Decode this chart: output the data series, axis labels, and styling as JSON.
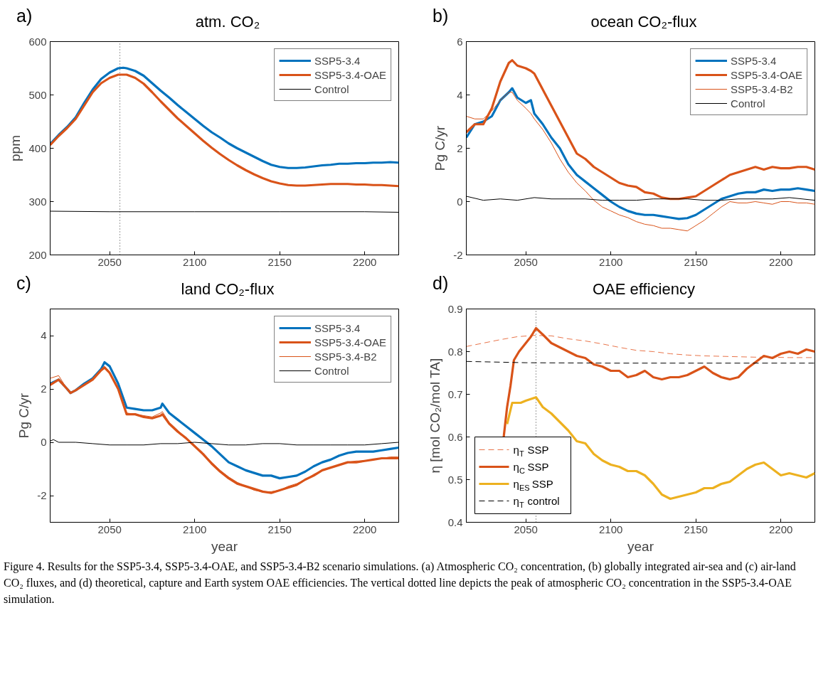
{
  "chart_data": [
    {
      "type": "line",
      "title": "atm. CO₂",
      "ylabel": "ppm",
      "annotations": [
        "a)"
      ],
      "xlim": [
        2015,
        2220
      ],
      "xticks": [
        2050,
        2100,
        2150,
        2200
      ],
      "ylim": [
        200,
        600
      ],
      "yticks": [
        200,
        300,
        400,
        500,
        600
      ],
      "legend": "top right",
      "grid": false,
      "ref_lines": [
        {
          "axis": "x",
          "value": 2056,
          "color": "#555555",
          "line_style": "dotted"
        }
      ],
      "x": [
        2015,
        2020,
        2025,
        2030,
        2035,
        2040,
        2045,
        2050,
        2055,
        2058,
        2060,
        2065,
        2070,
        2075,
        2080,
        2085,
        2090,
        2095,
        2100,
        2105,
        2110,
        2115,
        2120,
        2125,
        2130,
        2135,
        2140,
        2145,
        2150,
        2155,
        2160,
        2165,
        2170,
        2175,
        2180,
        2185,
        2190,
        2195,
        2200,
        2205,
        2210,
        2215,
        2220
      ],
      "series": [
        {
          "name": "SSP5-3.4",
          "color": "#0072bd",
          "values": [
            408,
            425,
            440,
            458,
            485,
            510,
            530,
            542,
            550,
            551,
            550,
            545,
            536,
            522,
            508,
            495,
            481,
            468,
            455,
            442,
            430,
            420,
            409,
            400,
            392,
            384,
            376,
            369,
            365,
            363,
            363,
            364,
            366,
            368,
            369,
            371,
            371,
            372,
            372,
            373,
            373,
            374,
            373
          ]
        },
        {
          "name": "SSP5-3.4-OAE",
          "color": "#d95319",
          "values": [
            406,
            423,
            438,
            455,
            480,
            505,
            522,
            532,
            538,
            538,
            538,
            532,
            521,
            505,
            488,
            472,
            456,
            442,
            428,
            414,
            401,
            389,
            378,
            368,
            359,
            351,
            344,
            338,
            334,
            331,
            330,
            330,
            331,
            332,
            333,
            333,
            333,
            332,
            332,
            331,
            331,
            330,
            329
          ]
        },
        {
          "name": "Control",
          "color": "#000000",
          "x": [
            2015,
            2050,
            2100,
            2150,
            2200,
            2220
          ],
          "values": [
            282,
            281,
            281,
            281,
            281,
            280
          ]
        }
      ]
    },
    {
      "type": "line",
      "title": "ocean CO₂-flux",
      "ylabel": "Pg C/yr",
      "annotations": [
        "b)"
      ],
      "xlim": [
        2015,
        2220
      ],
      "xticks": [
        2050,
        2100,
        2150,
        2200
      ],
      "ylim": [
        -2,
        6
      ],
      "yticks": [
        -2,
        0,
        2,
        4,
        6
      ],
      "legend": "top right",
      "grid": false,
      "x": [
        2015,
        2020,
        2025,
        2030,
        2035,
        2040,
        2042,
        2045,
        2050,
        2053,
        2055,
        2060,
        2065,
        2070,
        2075,
        2080,
        2085,
        2090,
        2095,
        2100,
        2105,
        2110,
        2115,
        2120,
        2125,
        2130,
        2135,
        2140,
        2145,
        2150,
        2155,
        2160,
        2165,
        2170,
        2175,
        2180,
        2185,
        2190,
        2195,
        2200,
        2205,
        2210,
        2215,
        2220
      ],
      "series": [
        {
          "name": "SSP5-3.4",
          "color": "#0072bd",
          "values": [
            2.4,
            2.9,
            3.0,
            3.2,
            3.8,
            4.1,
            4.25,
            3.9,
            3.7,
            3.8,
            3.3,
            2.9,
            2.4,
            2.0,
            1.4,
            1.0,
            0.75,
            0.5,
            0.25,
            0.0,
            -0.2,
            -0.35,
            -0.45,
            -0.5,
            -0.5,
            -0.55,
            -0.6,
            -0.65,
            -0.62,
            -0.5,
            -0.3,
            -0.1,
            0.1,
            0.2,
            0.3,
            0.35,
            0.35,
            0.45,
            0.4,
            0.45,
            0.45,
            0.5,
            0.45,
            0.4
          ]
        },
        {
          "name": "SSP5-3.4-OAE",
          "color": "#d95319",
          "values": [
            2.6,
            2.9,
            2.9,
            3.5,
            4.5,
            5.2,
            5.3,
            5.1,
            5.0,
            4.9,
            4.8,
            4.2,
            3.6,
            3.0,
            2.4,
            1.8,
            1.6,
            1.3,
            1.1,
            0.9,
            0.7,
            0.6,
            0.55,
            0.35,
            0.3,
            0.15,
            0.1,
            0.1,
            0.15,
            0.2,
            0.4,
            0.6,
            0.8,
            1.0,
            1.1,
            1.2,
            1.3,
            1.2,
            1.3,
            1.25,
            1.25,
            1.3,
            1.3,
            1.2
          ]
        },
        {
          "name": "SSP5-3.4-B2",
          "color": "#d95319",
          "values": [
            3.2,
            3.1,
            3.1,
            3.4,
            3.8,
            4.1,
            4.1,
            3.8,
            3.5,
            3.3,
            3.1,
            2.7,
            2.2,
            1.6,
            1.1,
            0.7,
            0.4,
            0.05,
            -0.2,
            -0.35,
            -0.5,
            -0.6,
            -0.75,
            -0.85,
            -0.9,
            -1.0,
            -1.0,
            -1.05,
            -1.1,
            -0.9,
            -0.7,
            -0.45,
            -0.2,
            0.0,
            -0.05,
            -0.05,
            0.0,
            -0.05,
            -0.1,
            0.0,
            0.0,
            -0.05,
            -0.05,
            -0.1
          ]
        },
        {
          "name": "Control",
          "color": "#000000",
          "x": [
            2015,
            2025,
            2035,
            2045,
            2055,
            2065,
            2075,
            2085,
            2095,
            2105,
            2115,
            2125,
            2135,
            2145,
            2155,
            2165,
            2175,
            2185,
            2195,
            2205,
            2220
          ],
          "values": [
            0.2,
            0.05,
            0.1,
            0.05,
            0.15,
            0.1,
            0.1,
            0.1,
            0.05,
            0.05,
            0.05,
            0.1,
            0.1,
            0.1,
            0.05,
            0.05,
            0.1,
            0.1,
            0.1,
            0.15,
            0.05
          ]
        }
      ]
    },
    {
      "type": "line",
      "title": "land CO₂-flux",
      "xlabel": "year",
      "ylabel": "Pg C/yr",
      "annotations": [
        "c)"
      ],
      "xlim": [
        2015,
        2220
      ],
      "xticks": [
        2050,
        2100,
        2150,
        2200
      ],
      "ylim": [
        -3,
        5
      ],
      "yticks": [
        -2,
        0,
        2,
        4
      ],
      "legend": "top right",
      "grid": false,
      "x": [
        2015,
        2020,
        2025,
        2027,
        2030,
        2035,
        2040,
        2045,
        2047,
        2050,
        2055,
        2060,
        2065,
        2070,
        2075,
        2080,
        2081,
        2085,
        2090,
        2095,
        2100,
        2105,
        2110,
        2115,
        2120,
        2125,
        2130,
        2135,
        2140,
        2145,
        2150,
        2155,
        2160,
        2165,
        2170,
        2175,
        2180,
        2185,
        2190,
        2195,
        2200,
        2205,
        2210,
        2215,
        2220
      ],
      "series": [
        {
          "name": "SSP5-3.4",
          "color": "#0072bd",
          "values": [
            2.2,
            2.35,
            2.0,
            1.85,
            1.95,
            2.2,
            2.4,
            2.75,
            3.0,
            2.85,
            2.2,
            1.3,
            1.25,
            1.2,
            1.2,
            1.3,
            1.45,
            1.1,
            0.85,
            0.6,
            0.35,
            0.1,
            -0.15,
            -0.45,
            -0.75,
            -0.9,
            -1.05,
            -1.15,
            -1.25,
            -1.25,
            -1.35,
            -1.3,
            -1.25,
            -1.1,
            -0.9,
            -0.75,
            -0.65,
            -0.5,
            -0.4,
            -0.35,
            -0.35,
            -0.35,
            -0.3,
            -0.25,
            -0.2
          ]
        },
        {
          "name": "SSP5-3.4-OAE",
          "color": "#d95319",
          "values": [
            2.15,
            2.35,
            2.0,
            1.85,
            1.95,
            2.15,
            2.35,
            2.7,
            2.8,
            2.6,
            2.0,
            1.05,
            1.05,
            0.95,
            0.9,
            1.0,
            1.05,
            0.7,
            0.4,
            0.15,
            -0.15,
            -0.45,
            -0.8,
            -1.1,
            -1.35,
            -1.55,
            -1.65,
            -1.75,
            -1.85,
            -1.9,
            -1.8,
            -1.7,
            -1.6,
            -1.4,
            -1.25,
            -1.05,
            -0.95,
            -0.85,
            -0.75,
            -0.75,
            -0.7,
            -0.65,
            -0.6,
            -0.6,
            -0.6
          ]
        },
        {
          "name": "SSP5-3.4-B2",
          "color": "#d95319",
          "values": [
            2.4,
            2.5,
            2.0,
            1.85,
            1.95,
            2.15,
            2.4,
            2.75,
            2.85,
            2.65,
            2.05,
            1.1,
            1.05,
            1.0,
            0.95,
            1.1,
            1.15,
            0.75,
            0.45,
            0.15,
            -0.1,
            -0.4,
            -0.75,
            -1.05,
            -1.3,
            -1.5,
            -1.65,
            -1.8,
            -1.85,
            -1.85,
            -1.8,
            -1.65,
            -1.55,
            -1.4,
            -1.2,
            -1.05,
            -0.95,
            -0.85,
            -0.75,
            -0.7,
            -0.7,
            -0.65,
            -0.6,
            -0.55,
            -0.55
          ]
        },
        {
          "name": "Control",
          "color": "#000000",
          "x": [
            2015,
            2017,
            2020,
            2030,
            2040,
            2050,
            2060,
            2070,
            2080,
            2090,
            2100,
            2110,
            2120,
            2130,
            2140,
            2150,
            2160,
            2170,
            2180,
            2190,
            2200,
            2210,
            2220
          ],
          "values": [
            0.05,
            0.1,
            0.0,
            0.0,
            -0.05,
            -0.1,
            -0.1,
            -0.1,
            -0.05,
            -0.05,
            0.0,
            -0.05,
            -0.1,
            -0.1,
            -0.05,
            -0.05,
            -0.1,
            -0.1,
            -0.1,
            -0.1,
            -0.1,
            -0.05,
            0.0
          ]
        }
      ]
    },
    {
      "type": "line",
      "title": "OAE efficiency",
      "xlabel": "year",
      "ylabel": "η [mol CO₂/mol TA]",
      "annotations": [
        "d)",
        "Figure 4. Results for the SSP5-3.4, SSP5-3.4-OAE, and SSP5-3.4-B2 scenario simulations. (a) Atmospheric CO₂ concentration, (b) globally integrated air-sea and (c) air-land CO₂ fluxes, and (d) theoretical, capture and Earth system OAE efficiencies. The vertical dotted line depicts the peak of atmospheric CO₂ concentration in the SSP5-3.4-OAE simulation."
      ],
      "xlim": [
        2015,
        2220
      ],
      "xticks": [
        2050,
        2100,
        2150,
        2200
      ],
      "ylim": [
        0.4,
        0.9
      ],
      "yticks": [
        0.4,
        0.5,
        0.6,
        0.7,
        0.8,
        0.9
      ],
      "legend": "bottom left",
      "grid": false,
      "ref_lines": [
        {
          "axis": "x",
          "value": 2056,
          "color": "#555555",
          "line_style": "dotted"
        }
      ],
      "series": [
        {
          "name": "η$_{T}$ SSP",
          "color": "#e8744a",
          "line_style": "dashed",
          "x": [
            2015,
            2025,
            2035,
            2045,
            2055,
            2065,
            2075,
            2085,
            2095,
            2105,
            2115,
            2125,
            2135,
            2145,
            2155,
            2165,
            2175,
            2185,
            2195,
            2205,
            2220
          ],
          "values": [
            0.812,
            0.82,
            0.828,
            0.835,
            0.838,
            0.837,
            0.83,
            0.825,
            0.818,
            0.81,
            0.803,
            0.8,
            0.795,
            0.792,
            0.79,
            0.789,
            0.788,
            0.787,
            0.787,
            0.786,
            0.786
          ]
        },
        {
          "name": "η$_{C}$ SSP",
          "color": "#d95319",
          "x": [
            2037,
            2039,
            2041,
            2043,
            2046,
            2050,
            2053,
            2056,
            2060,
            2065,
            2070,
            2075,
            2080,
            2085,
            2090,
            2095,
            2100,
            2105,
            2110,
            2115,
            2120,
            2125,
            2130,
            2135,
            2140,
            2145,
            2150,
            2155,
            2160,
            2165,
            2170,
            2175,
            2180,
            2185,
            2190,
            2195,
            2200,
            2205,
            2210,
            2215,
            2220
          ],
          "values": [
            0.6,
            0.67,
            0.72,
            0.78,
            0.8,
            0.82,
            0.835,
            0.855,
            0.84,
            0.82,
            0.81,
            0.8,
            0.79,
            0.785,
            0.77,
            0.765,
            0.755,
            0.755,
            0.74,
            0.745,
            0.755,
            0.74,
            0.735,
            0.74,
            0.74,
            0.745,
            0.755,
            0.765,
            0.75,
            0.74,
            0.735,
            0.74,
            0.76,
            0.775,
            0.79,
            0.785,
            0.795,
            0.8,
            0.795,
            0.805,
            0.8
          ]
        },
        {
          "name": "η$_{ES}$ SSP",
          "color": "#edb120",
          "x": [
            2039,
            2042,
            2047,
            2050,
            2056,
            2060,
            2065,
            2070,
            2075,
            2080,
            2085,
            2090,
            2095,
            2100,
            2105,
            2110,
            2115,
            2120,
            2125,
            2130,
            2135,
            2140,
            2145,
            2150,
            2155,
            2160,
            2165,
            2170,
            2175,
            2180,
            2185,
            2190,
            2195,
            2200,
            2205,
            2210,
            2215,
            2220
          ],
          "values": [
            0.63,
            0.68,
            0.68,
            0.685,
            0.693,
            0.67,
            0.655,
            0.635,
            0.615,
            0.59,
            0.585,
            0.56,
            0.545,
            0.535,
            0.53,
            0.52,
            0.52,
            0.51,
            0.49,
            0.465,
            0.455,
            0.46,
            0.465,
            0.47,
            0.48,
            0.48,
            0.49,
            0.495,
            0.51,
            0.525,
            0.535,
            0.54,
            0.525,
            0.51,
            0.515,
            0.51,
            0.505,
            0.515
          ]
        },
        {
          "name": "η$_{T}$ control",
          "color": "#000000",
          "line_style": "dashed",
          "x": [
            2015,
            2050,
            2100,
            2150,
            2220
          ],
          "values": [
            0.777,
            0.774,
            0.773,
            0.773,
            0.773
          ]
        }
      ]
    }
  ]
}
